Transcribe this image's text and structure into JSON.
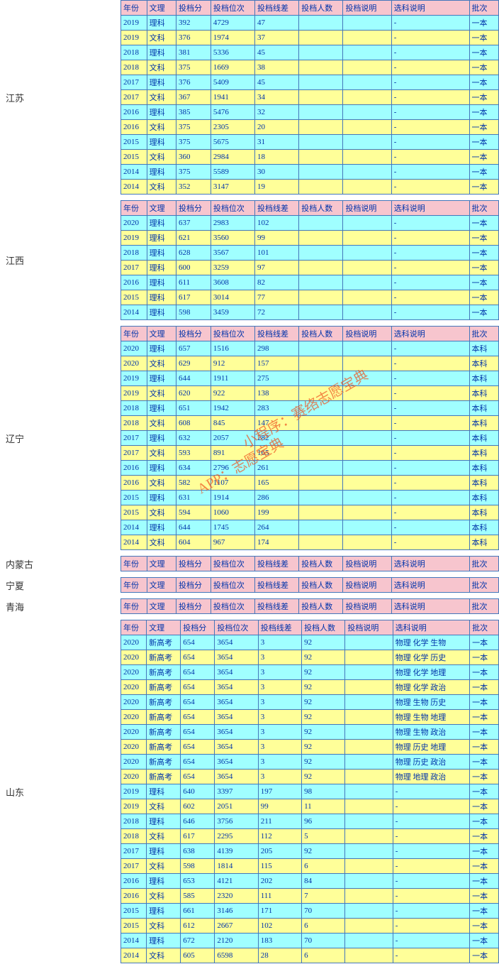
{
  "watermarks": [
    "小程序：赛络志愿宝典",
    "APP：志愿宝典"
  ],
  "columns": [
    "年份",
    "文理",
    "投档分",
    "投档位次",
    "投档线差",
    "投档人数",
    "投档说明",
    "选科说明",
    "批次"
  ],
  "sections": [
    {
      "province": "江苏",
      "rows": [
        {
          "c": [
            "2019",
            "理科",
            "392",
            "4729",
            "47",
            "",
            "",
            "-",
            "一本"
          ],
          "cls": "cyan"
        },
        {
          "c": [
            "2019",
            "文科",
            "376",
            "1974",
            "37",
            "",
            "",
            "-",
            "一本"
          ],
          "cls": "yellow"
        },
        {
          "c": [
            "2018",
            "理科",
            "381",
            "5336",
            "45",
            "",
            "",
            "-",
            "一本"
          ],
          "cls": "cyan"
        },
        {
          "c": [
            "2018",
            "文科",
            "375",
            "1669",
            "38",
            "",
            "",
            "-",
            "一本"
          ],
          "cls": "yellow"
        },
        {
          "c": [
            "2017",
            "理科",
            "376",
            "5409",
            "45",
            "",
            "",
            "-",
            "一本"
          ],
          "cls": "cyan"
        },
        {
          "c": [
            "2017",
            "文科",
            "367",
            "1941",
            "34",
            "",
            "",
            "-",
            "一本"
          ],
          "cls": "yellow"
        },
        {
          "c": [
            "2016",
            "理科",
            "385",
            "5476",
            "32",
            "",
            "",
            "-",
            "一本"
          ],
          "cls": "cyan"
        },
        {
          "c": [
            "2016",
            "文科",
            "375",
            "2305",
            "20",
            "",
            "",
            "-",
            "一本"
          ],
          "cls": "yellow"
        },
        {
          "c": [
            "2015",
            "理科",
            "375",
            "5675",
            "31",
            "",
            "",
            "-",
            "一本"
          ],
          "cls": "cyan"
        },
        {
          "c": [
            "2015",
            "文科",
            "360",
            "2984",
            "18",
            "",
            "",
            "-",
            "一本"
          ],
          "cls": "yellow"
        },
        {
          "c": [
            "2014",
            "理科",
            "375",
            "5589",
            "30",
            "",
            "",
            "-",
            "一本"
          ],
          "cls": "cyan"
        },
        {
          "c": [
            "2014",
            "文科",
            "352",
            "3147",
            "19",
            "",
            "",
            "-",
            "一本"
          ],
          "cls": "yellow"
        }
      ]
    },
    {
      "province": "江西",
      "rows": [
        {
          "c": [
            "2020",
            "理科",
            "637",
            "2983",
            "102",
            "",
            "",
            "-",
            "一本"
          ],
          "cls": "cyan"
        },
        {
          "c": [
            "2019",
            "理科",
            "621",
            "3560",
            "99",
            "",
            "",
            "-",
            "一本"
          ],
          "cls": "yellow"
        },
        {
          "c": [
            "2018",
            "理科",
            "628",
            "3567",
            "101",
            "",
            "",
            "-",
            "一本"
          ],
          "cls": "cyan"
        },
        {
          "c": [
            "2017",
            "理科",
            "600",
            "3259",
            "97",
            "",
            "",
            "-",
            "一本"
          ],
          "cls": "yellow"
        },
        {
          "c": [
            "2016",
            "理科",
            "611",
            "3608",
            "82",
            "",
            "",
            "-",
            "一本"
          ],
          "cls": "cyan"
        },
        {
          "c": [
            "2015",
            "理科",
            "617",
            "3014",
            "77",
            "",
            "",
            "-",
            "一本"
          ],
          "cls": "yellow"
        },
        {
          "c": [
            "2014",
            "理科",
            "598",
            "3459",
            "72",
            "",
            "",
            "-",
            "一本"
          ],
          "cls": "cyan"
        }
      ]
    },
    {
      "province": "辽宁",
      "rows": [
        {
          "c": [
            "2020",
            "理科",
            "657",
            "1516",
            "298",
            "",
            "",
            "-",
            "本科"
          ],
          "cls": "cyan"
        },
        {
          "c": [
            "2020",
            "文科",
            "629",
            "912",
            "157",
            "",
            "",
            "-",
            "本科"
          ],
          "cls": "yellow"
        },
        {
          "c": [
            "2019",
            "理科",
            "644",
            "1911",
            "275",
            "",
            "",
            "-",
            "本科"
          ],
          "cls": "cyan"
        },
        {
          "c": [
            "2019",
            "文科",
            "620",
            "922",
            "138",
            "",
            "",
            "-",
            "本科"
          ],
          "cls": "yellow"
        },
        {
          "c": [
            "2018",
            "理科",
            "651",
            "1942",
            "283",
            "",
            "",
            "-",
            "本科"
          ],
          "cls": "cyan"
        },
        {
          "c": [
            "2018",
            "文科",
            "608",
            "845",
            "147",
            "",
            "",
            "-",
            "本科"
          ],
          "cls": "yellow"
        },
        {
          "c": [
            "2017",
            "理科",
            "632",
            "2057",
            "282",
            "",
            "",
            "-",
            "本科"
          ],
          "cls": "cyan"
        },
        {
          "c": [
            "2017",
            "文科",
            "593",
            "891",
            "165",
            "",
            "",
            "-",
            "本科"
          ],
          "cls": "yellow"
        },
        {
          "c": [
            "2016",
            "理科",
            "634",
            "2796",
            "261",
            "",
            "",
            "-",
            "本科"
          ],
          "cls": "cyan"
        },
        {
          "c": [
            "2016",
            "文科",
            "582",
            "1107",
            "165",
            "",
            "",
            "-",
            "本科"
          ],
          "cls": "yellow"
        },
        {
          "c": [
            "2015",
            "理科",
            "631",
            "1914",
            "286",
            "",
            "",
            "-",
            "本科"
          ],
          "cls": "cyan"
        },
        {
          "c": [
            "2015",
            "文科",
            "594",
            "1060",
            "199",
            "",
            "",
            "-",
            "本科"
          ],
          "cls": "yellow"
        },
        {
          "c": [
            "2014",
            "理科",
            "644",
            "1745",
            "264",
            "",
            "",
            "-",
            "本科"
          ],
          "cls": "cyan"
        },
        {
          "c": [
            "2014",
            "文科",
            "604",
            "967",
            "174",
            "",
            "",
            "-",
            "本科"
          ],
          "cls": "yellow"
        }
      ]
    },
    {
      "province": "内蒙古",
      "rows": []
    },
    {
      "province": "宁夏",
      "rows": []
    },
    {
      "province": "青海",
      "rows": []
    },
    {
      "province": "山东",
      "rows": [
        {
          "c": [
            "2020",
            "新高考",
            "654",
            "3654",
            "3",
            "92",
            "",
            "物理 化学 生物",
            "一本"
          ],
          "cls": "cyan"
        },
        {
          "c": [
            "2020",
            "新高考",
            "654",
            "3654",
            "3",
            "92",
            "",
            "物理 化学 历史",
            "一本"
          ],
          "cls": "yellow"
        },
        {
          "c": [
            "2020",
            "新高考",
            "654",
            "3654",
            "3",
            "92",
            "",
            "物理 化学 地理",
            "一本"
          ],
          "cls": "cyan"
        },
        {
          "c": [
            "2020",
            "新高考",
            "654",
            "3654",
            "3",
            "92",
            "",
            "物理 化学 政治",
            "一本"
          ],
          "cls": "yellow"
        },
        {
          "c": [
            "2020",
            "新高考",
            "654",
            "3654",
            "3",
            "92",
            "",
            "物理 生物 历史",
            "一本"
          ],
          "cls": "cyan"
        },
        {
          "c": [
            "2020",
            "新高考",
            "654",
            "3654",
            "3",
            "92",
            "",
            "物理 生物 地理",
            "一本"
          ],
          "cls": "yellow"
        },
        {
          "c": [
            "2020",
            "新高考",
            "654",
            "3654",
            "3",
            "92",
            "",
            "物理 生物 政治",
            "一本"
          ],
          "cls": "cyan"
        },
        {
          "c": [
            "2020",
            "新高考",
            "654",
            "3654",
            "3",
            "92",
            "",
            "物理 历史 地理",
            "一本"
          ],
          "cls": "yellow"
        },
        {
          "c": [
            "2020",
            "新高考",
            "654",
            "3654",
            "3",
            "92",
            "",
            "物理 历史 政治",
            "一本"
          ],
          "cls": "cyan"
        },
        {
          "c": [
            "2020",
            "新高考",
            "654",
            "3654",
            "3",
            "92",
            "",
            "物理 地理 政治",
            "一本"
          ],
          "cls": "yellow"
        },
        {
          "c": [
            "2019",
            "理科",
            "640",
            "3397",
            "197",
            "98",
            "",
            "-",
            "一本"
          ],
          "cls": "cyan"
        },
        {
          "c": [
            "2019",
            "文科",
            "602",
            "2051",
            "99",
            "11",
            "",
            "-",
            "一本"
          ],
          "cls": "yellow"
        },
        {
          "c": [
            "2018",
            "理科",
            "646",
            "3756",
            "211",
            "96",
            "",
            "-",
            "一本"
          ],
          "cls": "cyan"
        },
        {
          "c": [
            "2018",
            "文科",
            "617",
            "2295",
            "112",
            "5",
            "",
            "-",
            "一本"
          ],
          "cls": "yellow"
        },
        {
          "c": [
            "2017",
            "理科",
            "638",
            "4139",
            "205",
            "92",
            "",
            "-",
            "一本"
          ],
          "cls": "cyan"
        },
        {
          "c": [
            "2017",
            "文科",
            "598",
            "1814",
            "115",
            "6",
            "",
            "-",
            "一本"
          ],
          "cls": "yellow"
        },
        {
          "c": [
            "2016",
            "理科",
            "653",
            "4121",
            "202",
            "84",
            "",
            "-",
            "一本"
          ],
          "cls": "cyan"
        },
        {
          "c": [
            "2016",
            "文科",
            "585",
            "2320",
            "111",
            "7",
            "",
            "-",
            "一本"
          ],
          "cls": "yellow"
        },
        {
          "c": [
            "2015",
            "理科",
            "661",
            "3146",
            "171",
            "70",
            "",
            "-",
            "一本"
          ],
          "cls": "cyan"
        },
        {
          "c": [
            "2015",
            "文科",
            "612",
            "2667",
            "102",
            "6",
            "",
            "-",
            "一本"
          ],
          "cls": "yellow"
        },
        {
          "c": [
            "2014",
            "理科",
            "672",
            "2120",
            "183",
            "70",
            "",
            "-",
            "一本"
          ],
          "cls": "cyan"
        },
        {
          "c": [
            "2014",
            "文科",
            "605",
            "6598",
            "28",
            "6",
            "",
            "-",
            "一本"
          ],
          "cls": "yellow"
        }
      ]
    }
  ]
}
